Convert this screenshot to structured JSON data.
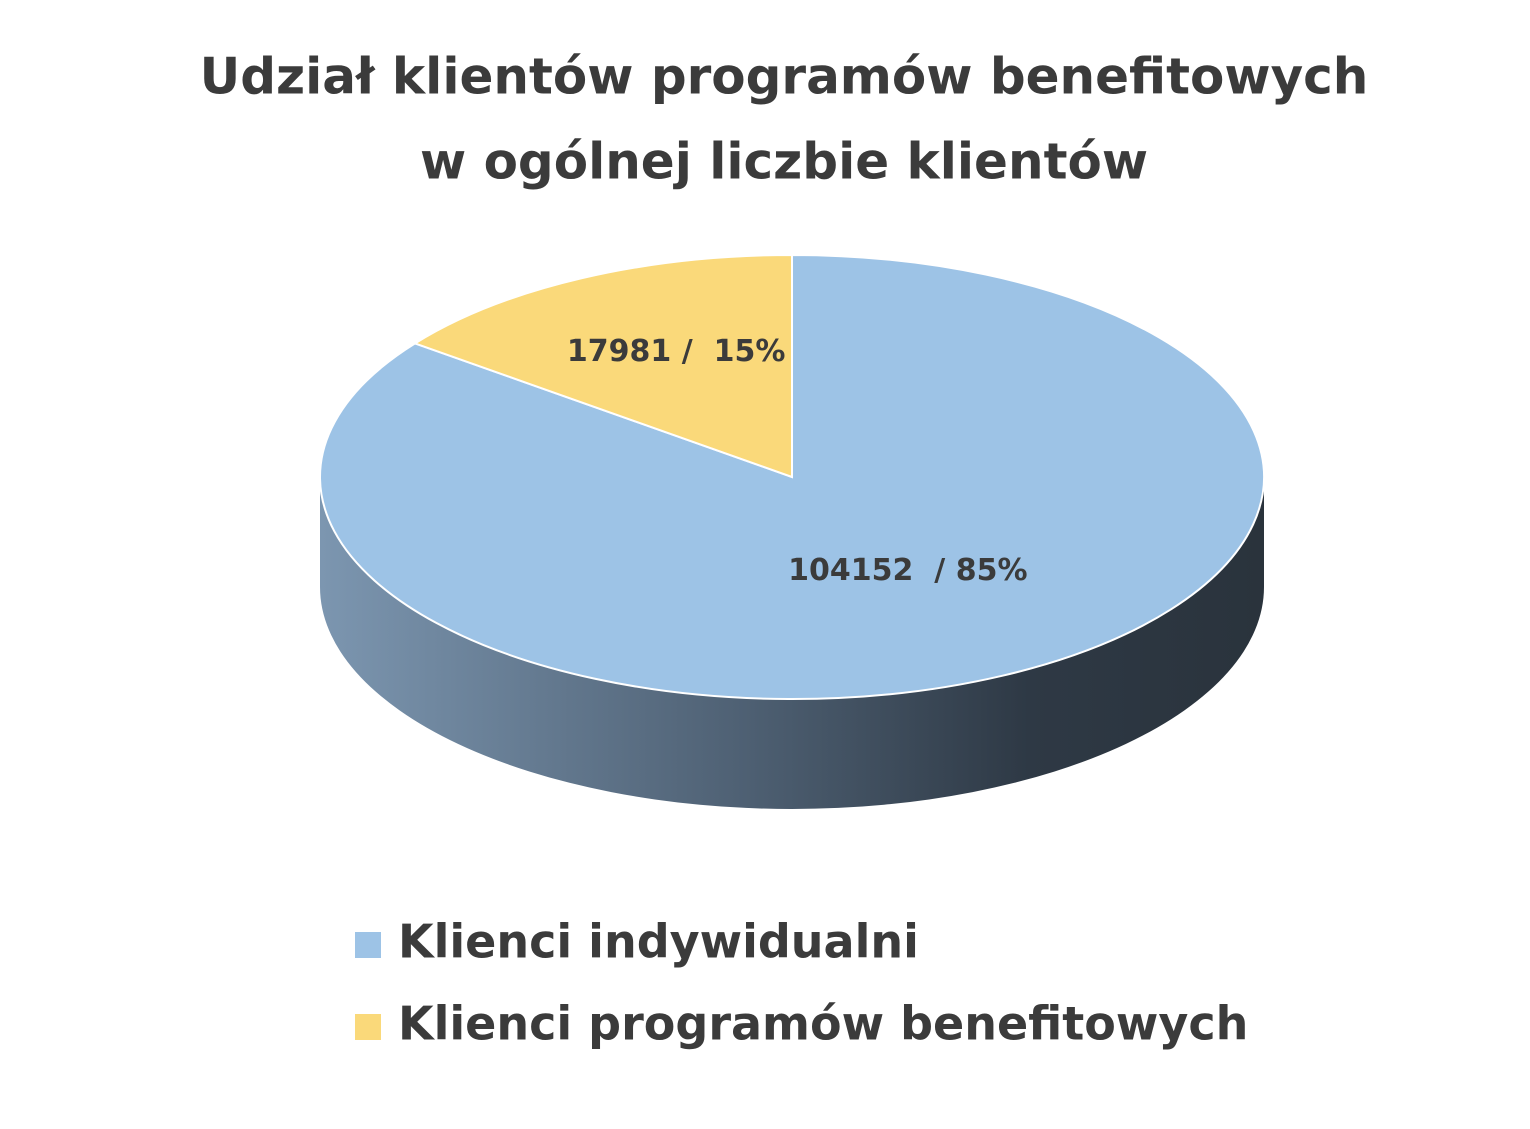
{
  "chart_data": {
    "type": "pie",
    "title": [
      "Udział klientów programów benefitowych",
      "w ogólnej liczbie klientów"
    ],
    "categories": [
      "Klienci indywidualni",
      "Klienci programów benefitowych"
    ],
    "values": [
      104152,
      17981
    ],
    "value_labels": [
      "104152  / 85%",
      "17981 /  15%"
    ],
    "colors": [
      "#9dc3e6",
      "#fad97a"
    ],
    "legend": "bottom"
  }
}
